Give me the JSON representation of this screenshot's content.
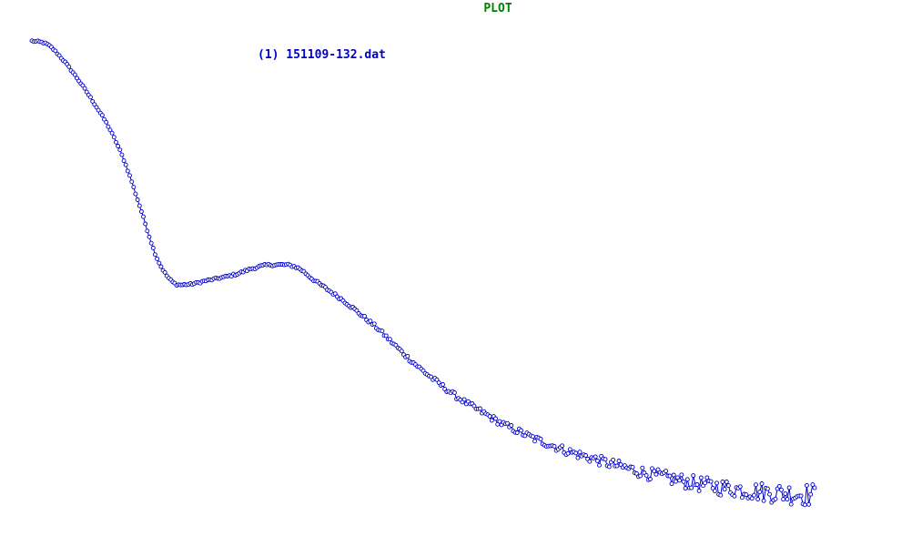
{
  "window": {
    "title": "PLOT",
    "title_color": "#008000"
  },
  "chart_data": {
    "type": "line",
    "title": "",
    "xlabel": "",
    "ylabel": "",
    "grid": false,
    "axes_visible": false,
    "marker": "open-circle",
    "legend_position": "top-center",
    "xlim": [
      0.0,
      1.0
    ],
    "ylim": [
      0.0,
      1.0
    ],
    "series": [
      {
        "name": "(1) 151109-132.dat",
        "color": "#0000cc",
        "x": [
          0.0,
          0.02,
          0.04,
          0.06,
          0.08,
          0.1,
          0.12,
          0.14,
          0.16,
          0.18,
          0.2,
          0.22,
          0.24,
          0.26,
          0.28,
          0.3,
          0.32,
          0.34,
          0.36,
          0.38,
          0.4,
          0.42,
          0.44,
          0.46,
          0.48,
          0.5,
          0.52,
          0.54,
          0.56,
          0.58,
          0.6,
          0.62,
          0.64,
          0.66,
          0.68,
          0.7,
          0.72,
          0.74,
          0.76,
          0.78,
          0.8,
          0.82,
          0.84,
          0.86,
          0.88,
          0.9,
          0.92,
          0.94,
          0.96,
          0.98,
          1.0
        ],
        "y": [
          1.0,
          0.992,
          0.958,
          0.913,
          0.862,
          0.805,
          0.728,
          0.626,
          0.523,
          0.471,
          0.466,
          0.473,
          0.48,
          0.488,
          0.5,
          0.508,
          0.509,
          0.502,
          0.476,
          0.452,
          0.428,
          0.4,
          0.372,
          0.339,
          0.306,
          0.276,
          0.249,
          0.223,
          0.201,
          0.181,
          0.161,
          0.145,
          0.129,
          0.116,
          0.103,
          0.092,
          0.082,
          0.072,
          0.063,
          0.054,
          0.046,
          0.039,
          0.032,
          0.026,
          0.021,
          0.017,
          0.013,
          0.01,
          0.008,
          0.006,
          0.004
        ]
      }
    ]
  }
}
